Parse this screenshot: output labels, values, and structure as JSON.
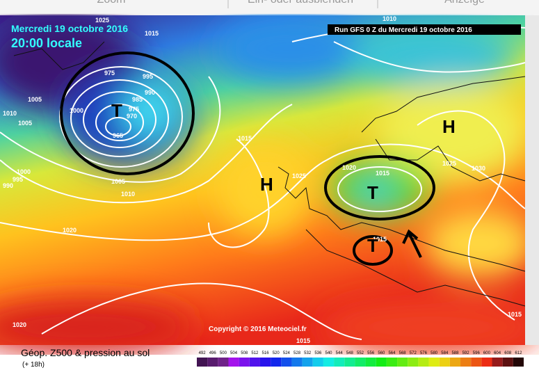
{
  "toolbar": [
    "Zoom",
    "Ein- oder ausblenden",
    "Anzeige"
  ],
  "header": {
    "date": "Mercredi 19 octobre 2016",
    "time": "20:00 locale",
    "run": "Run GFS 0 Z du Mercredi 19 octobre 2016"
  },
  "copyright": "Copyright © 2016 Meteociel.fr",
  "footer": {
    "product": "Géop. Z500 & pression au sol",
    "step": "(+ 18h)"
  },
  "pressure_labels": [
    1025,
    1015,
    1010,
    975,
    995,
    990,
    985,
    975,
    970,
    965,
    1000,
    1005,
    1010,
    1005,
    1015,
    1025,
    1020,
    1015,
    1025,
    1030,
    1000,
    995,
    990,
    1005,
    1010,
    1020,
    1015,
    1020,
    1015,
    1015
  ],
  "centers": [
    "T",
    "H",
    "T",
    "H",
    "T"
  ],
  "scale": [
    492,
    496,
    500,
    504,
    508,
    512,
    516,
    520,
    524,
    528,
    532,
    536,
    540,
    544,
    548,
    552,
    556,
    560,
    564,
    568,
    572,
    576,
    580,
    584,
    588,
    592,
    596,
    600,
    604,
    608,
    612
  ]
}
